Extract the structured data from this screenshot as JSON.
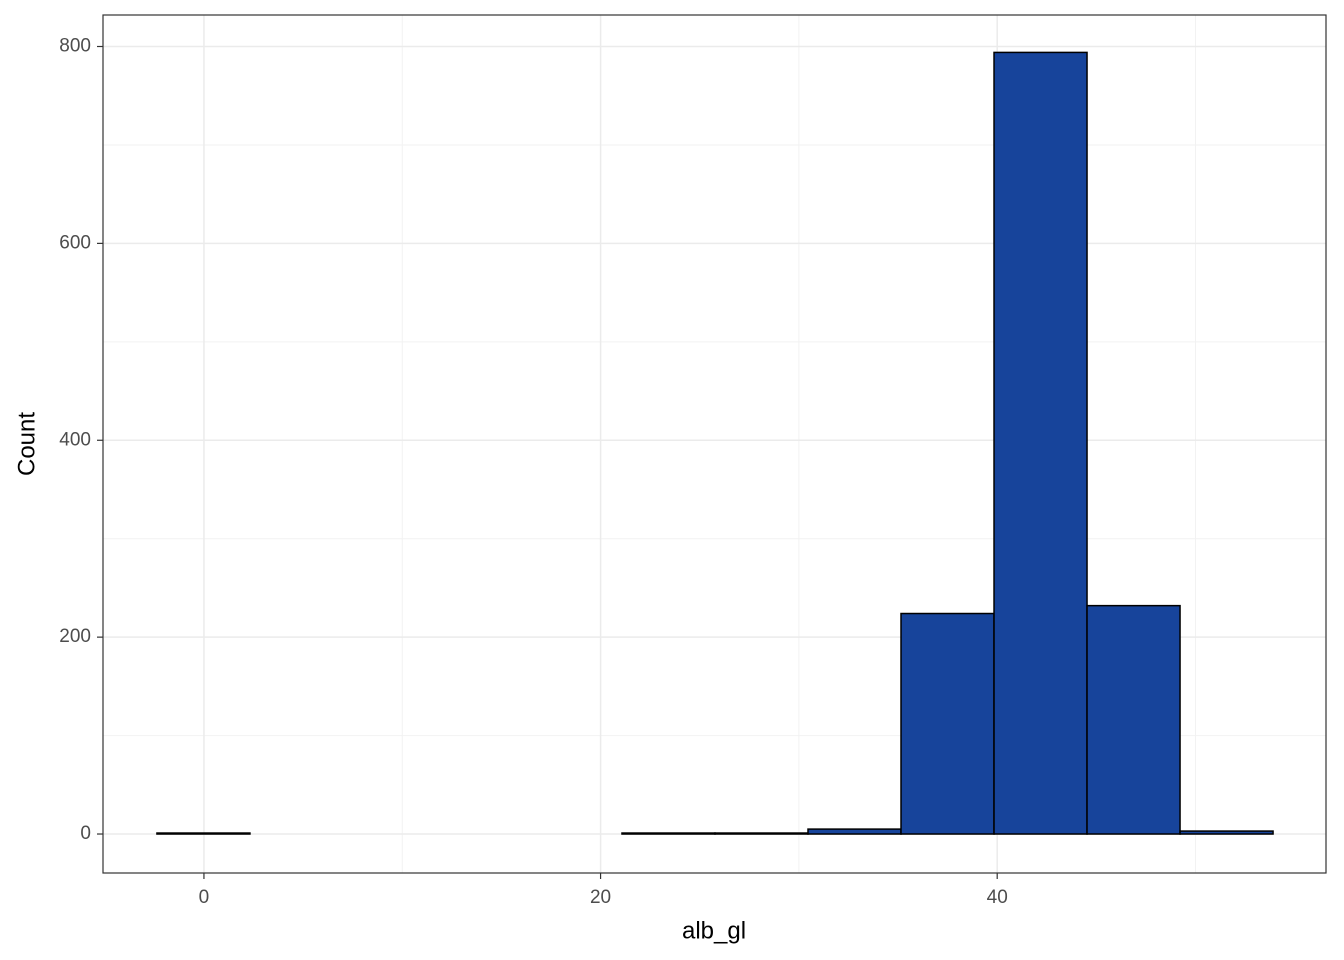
{
  "chart_data": {
    "type": "histogram",
    "x_label": "alb_gl",
    "y_label": "Count",
    "bins": [
      -2.37,
      2.32,
      7.01,
      11.7,
      16.39,
      21.08,
      25.77,
      30.46,
      35.15,
      39.84,
      44.53,
      49.22,
      53.91
    ],
    "values": [
      1,
      0,
      0,
      0,
      0,
      1,
      1,
      5,
      224,
      794,
      232,
      3
    ],
    "color": "#17449b",
    "xlim": [
      -5.09,
      56.58
    ],
    "ylim": [
      -39.6,
      832
    ],
    "xticks": [
      0,
      20,
      40
    ],
    "yticks": [
      0,
      200,
      400,
      600,
      800
    ],
    "xminor": [
      10,
      30,
      50
    ],
    "yminor": [
      100,
      300,
      500,
      700
    ],
    "grid": true
  }
}
